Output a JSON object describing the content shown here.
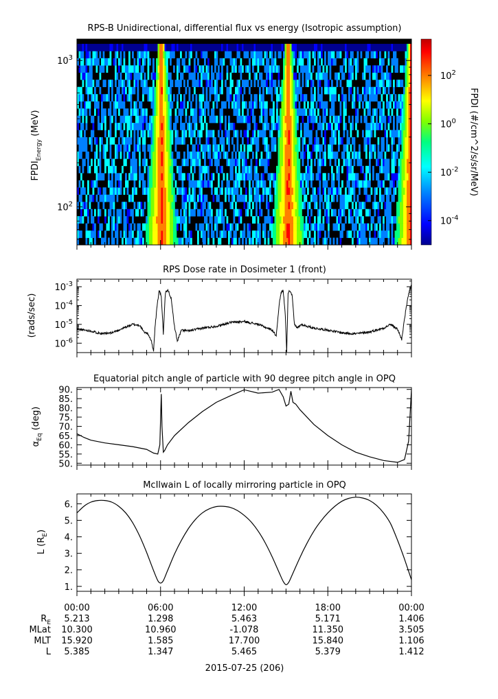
{
  "figure": {
    "date_label": "2015-07-25 (206)"
  },
  "chart_data": [
    {
      "type": "heatmap",
      "title": "RPS-B  Unidirectional, differential flux vs energy (Isotropic assumption)",
      "ylabel_main": "FPDI",
      "ylabel_sub": "Energy",
      "ylabel_unit": "(MeV)",
      "yscale": "log",
      "ylim": [
        55,
        1400
      ],
      "yticks": [
        {
          "base": "10",
          "exp": "3",
          "value": 1000
        },
        {
          "base": "10",
          "exp": "2",
          "value": 100
        }
      ],
      "x_hours": [
        0,
        24
      ],
      "energy_channel_top": 1300,
      "flux_bands_hours": [
        6.0,
        15.1,
        23.9
      ],
      "colorbar": {
        "label": "FPDI (#/cm^2/s/sr/MeV)",
        "scale": "log",
        "range_exp": [
          -5,
          3.5
        ],
        "ticks": [
          {
            "base": "10",
            "exp": "2",
            "value": 2
          },
          {
            "base": "10",
            "exp": "0",
            "value": 0
          },
          {
            "base": "10",
            "exp": "-2",
            "value": -2
          },
          {
            "base": "10",
            "exp": "-4",
            "value": -4
          }
        ],
        "colors": [
          "#00008f",
          "#0000ff",
          "#0080ff",
          "#00ffff",
          "#00ff80",
          "#80ff00",
          "#ffff00",
          "#ff8000",
          "#ff0000",
          "#800000"
        ]
      }
    },
    {
      "type": "line",
      "title": "RPS  Dose rate in Dosimeter 1 (front)",
      "ylabel": "(rads/sec)",
      "yscale": "log",
      "ylim_exp": [
        -6.5,
        -2.6
      ],
      "yticks": [
        {
          "base": "10",
          "exp": "-3",
          "value": -3
        },
        {
          "base": "10",
          "exp": "-4",
          "value": -4
        },
        {
          "base": "10",
          "exp": "-5",
          "value": -5
        },
        {
          "base": "10",
          "exp": "-6",
          "value": -6
        }
      ],
      "x": [
        0,
        0.5,
        1,
        1.5,
        2,
        2.5,
        3,
        3.5,
        4,
        4.5,
        4.8,
        5.1,
        5.3,
        5.5,
        5.6,
        5.75,
        5.9,
        6.05,
        6.2,
        6.35,
        6.55,
        6.75,
        7.0,
        7.2,
        7.5,
        8,
        9,
        10,
        11,
        12,
        13,
        14,
        14.3,
        14.5,
        14.65,
        14.8,
        14.95,
        15.05,
        15.15,
        15.3,
        15.45,
        15.6,
        15.8,
        16.1,
        16.5,
        17,
        18,
        19,
        20,
        21,
        22,
        22.5,
        23.0,
        23.3,
        23.6,
        23.85,
        24
      ],
      "series": [
        {
          "log10_values": [
            -5.25,
            -5.3,
            -5.35,
            -5.45,
            -5.5,
            -5.45,
            -5.3,
            -5.15,
            -5.0,
            -5.05,
            -5.4,
            -5.5,
            -5.8,
            -6.4,
            -5.2,
            -4.0,
            -3.2,
            -3.5,
            -5.5,
            -3.3,
            -3.2,
            -3.6,
            -5.1,
            -5.9,
            -5.3,
            -5.35,
            -5.2,
            -5.1,
            -4.9,
            -4.85,
            -5.0,
            -5.3,
            -5.6,
            -4.0,
            -3.3,
            -3.2,
            -4.5,
            -6.5,
            -3.3,
            -3.2,
            -3.5,
            -5.0,
            -5.2,
            -5.0,
            -5.1,
            -5.2,
            -5.3,
            -5.45,
            -5.5,
            -5.4,
            -5.2,
            -5.0,
            -5.25,
            -5.8,
            -4.2,
            -3.2,
            -2.9
          ]
        }
      ]
    },
    {
      "type": "line",
      "title": "Equatorial pitch angle of particle with 90 degree pitch angle in OPQ",
      "ylabel_main": "α",
      "ylabel_sub": "Eq",
      "ylabel_unit": "(deg)",
      "ylim": [
        49,
        91
      ],
      "yticks": [
        "90.",
        "85.",
        "80.",
        "75.",
        "70.",
        "65.",
        "60.",
        "55.",
        "50."
      ],
      "ytick_values": [
        90,
        85,
        80,
        75,
        70,
        65,
        60,
        55,
        50
      ],
      "x": [
        0,
        0.5,
        1,
        2,
        3,
        4,
        5,
        5.5,
        5.8,
        5.95,
        6.05,
        6.1,
        6.2,
        6.3,
        6.5,
        7,
        8,
        9,
        10,
        11,
        12,
        13,
        14,
        14.5,
        14.8,
        15.0,
        15.2,
        15.35,
        15.5,
        15.7,
        16,
        17,
        18,
        19,
        20,
        21,
        22,
        23,
        23.5,
        23.8,
        24
      ],
      "series": [
        {
          "values": [
            66,
            64,
            62.5,
            61,
            60,
            59,
            57.5,
            55.5,
            55,
            60,
            87.5,
            70,
            56,
            57,
            60,
            65,
            72,
            78,
            83,
            86.5,
            89.8,
            88,
            88.5,
            90,
            86,
            81,
            82,
            89,
            83,
            82,
            79,
            71,
            65,
            60,
            56,
            53.5,
            51.5,
            50.5,
            52,
            62,
            90
          ]
        }
      ]
    },
    {
      "type": "line",
      "title": "McIlwain L of locally mirroring particle in OPQ",
      "ylabel_main": "L (R",
      "ylabel_sub": "E",
      "ylabel_unit": ")",
      "ylim": [
        0.7,
        6.6
      ],
      "yticks": [
        "6.",
        "5.",
        "4.",
        "3.",
        "2.",
        "1."
      ],
      "ytick_values": [
        6,
        5,
        4,
        3,
        2,
        1
      ],
      "x": [
        0,
        0.5,
        1,
        1.5,
        2,
        2.5,
        3,
        3.5,
        4,
        4.5,
        5,
        5.5,
        5.8,
        6.0,
        6.2,
        6.5,
        7,
        7.5,
        8,
        8.5,
        9,
        9.5,
        10,
        10.5,
        11,
        11.5,
        12,
        12.5,
        13,
        13.5,
        14,
        14.5,
        14.8,
        15.0,
        15.2,
        15.5,
        16,
        16.5,
        17,
        17.5,
        18,
        18.5,
        19,
        19.5,
        20,
        20.5,
        21,
        21.5,
        22,
        22.5,
        23,
        23.5,
        24
      ],
      "series": [
        {
          "values": [
            5.45,
            5.85,
            6.1,
            6.2,
            6.2,
            6.1,
            5.85,
            5.45,
            4.85,
            4.05,
            3.05,
            1.95,
            1.35,
            1.2,
            1.35,
            1.95,
            2.95,
            3.8,
            4.5,
            5.05,
            5.45,
            5.7,
            5.83,
            5.85,
            5.78,
            5.6,
            5.3,
            4.9,
            4.35,
            3.65,
            2.8,
            1.85,
            1.3,
            1.1,
            1.25,
            1.8,
            2.75,
            3.6,
            4.35,
            4.95,
            5.45,
            5.85,
            6.15,
            6.33,
            6.4,
            6.35,
            6.2,
            5.9,
            5.45,
            4.8,
            3.8,
            2.65,
            1.4
          ]
        }
      ]
    }
  ],
  "time_axis": {
    "labels": [
      "00:00",
      "06:00",
      "12:00",
      "18:00",
      "00:00"
    ],
    "hours": [
      0,
      6,
      12,
      18,
      24
    ]
  },
  "ephemeris": {
    "rows": [
      {
        "label": "R",
        "label_sub": "E",
        "values": [
          "5.213",
          "1.298",
          "5.463",
          "5.171",
          "1.406"
        ]
      },
      {
        "label": "MLat",
        "label_sub": "",
        "values": [
          "10.300",
          "10.960",
          "-1.078",
          "11.350",
          "3.505"
        ]
      },
      {
        "label": "MLT",
        "label_sub": "",
        "values": [
          "15.920",
          "1.585",
          "17.700",
          "15.840",
          "1.106"
        ]
      },
      {
        "label": "L",
        "label_sub": "",
        "values": [
          "5.385",
          "1.347",
          "5.465",
          "5.379",
          "1.412"
        ]
      }
    ]
  }
}
